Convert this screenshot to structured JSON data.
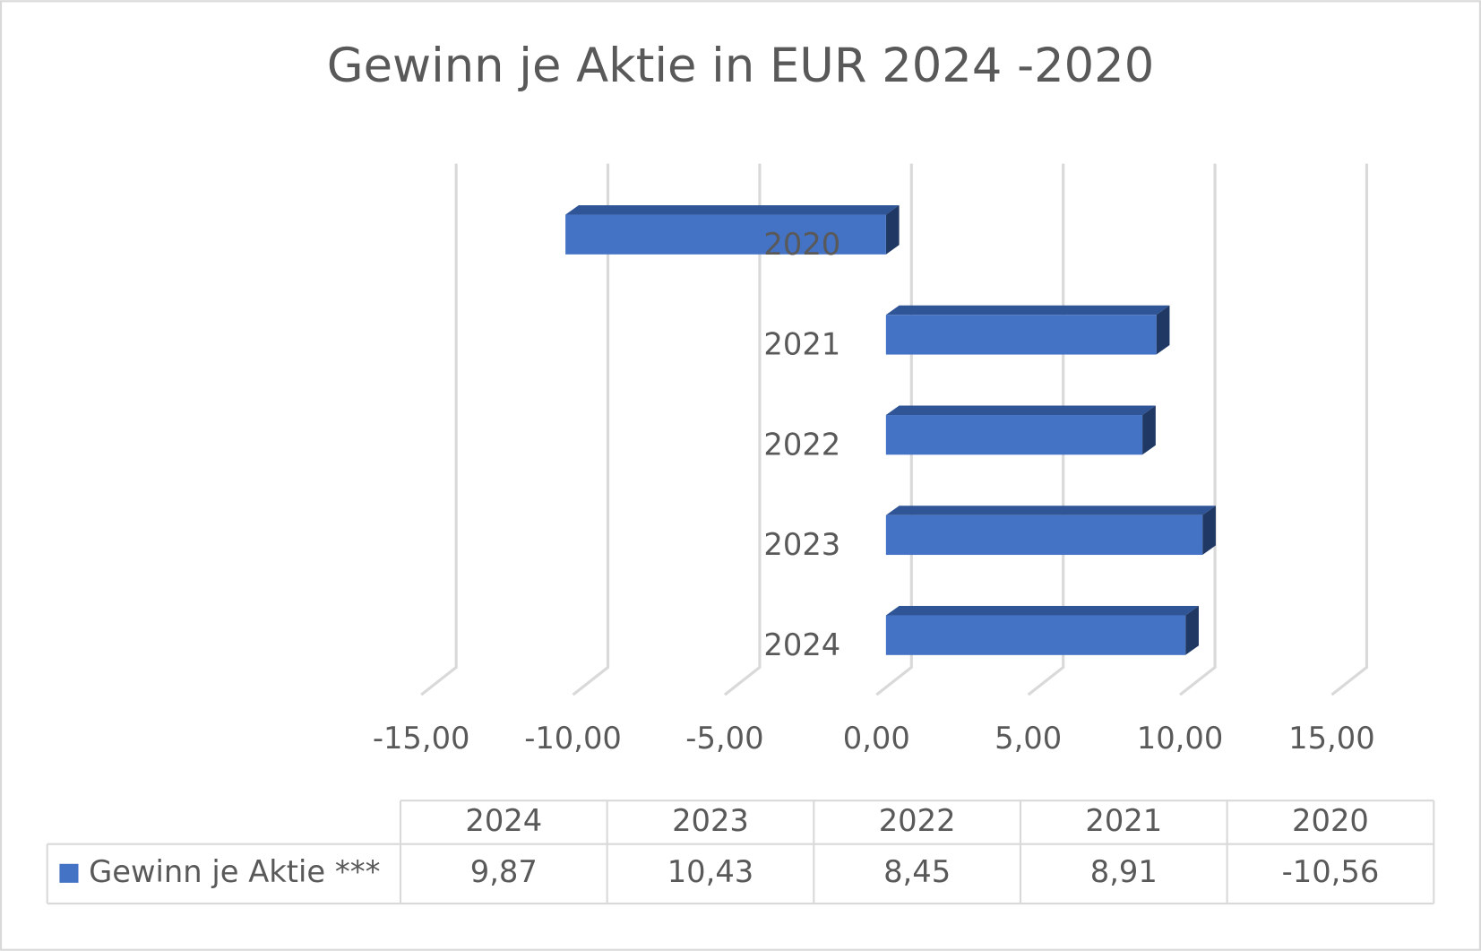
{
  "chart_data": {
    "type": "bar3d-horizontal",
    "title": "Gewinn je Aktie in EUR 2024 -2020",
    "categories": [
      "2024",
      "2023",
      "2022",
      "2021",
      "2020"
    ],
    "series": [
      {
        "name": "Gewinn je Aktie ***",
        "color": "#4472c4",
        "values": [
          9.87,
          10.43,
          8.45,
          8.91,
          -10.56
        ],
        "value_labels": [
          "9,87",
          "10,43",
          "8,45",
          "8,91",
          "-10,56"
        ]
      }
    ],
    "xlim": [
      -15,
      15
    ],
    "xticks": [
      {
        "value": -15,
        "label": "-15,00"
      },
      {
        "value": -10,
        "label": "-10,00"
      },
      {
        "value": -5,
        "label": "-5,00"
      },
      {
        "value": 0,
        "label": "0,00"
      },
      {
        "value": 5,
        "label": "5,00"
      },
      {
        "value": 10,
        "label": "10,00"
      },
      {
        "value": 15,
        "label": "15,00"
      }
    ],
    "grid": true,
    "data_table": true
  }
}
